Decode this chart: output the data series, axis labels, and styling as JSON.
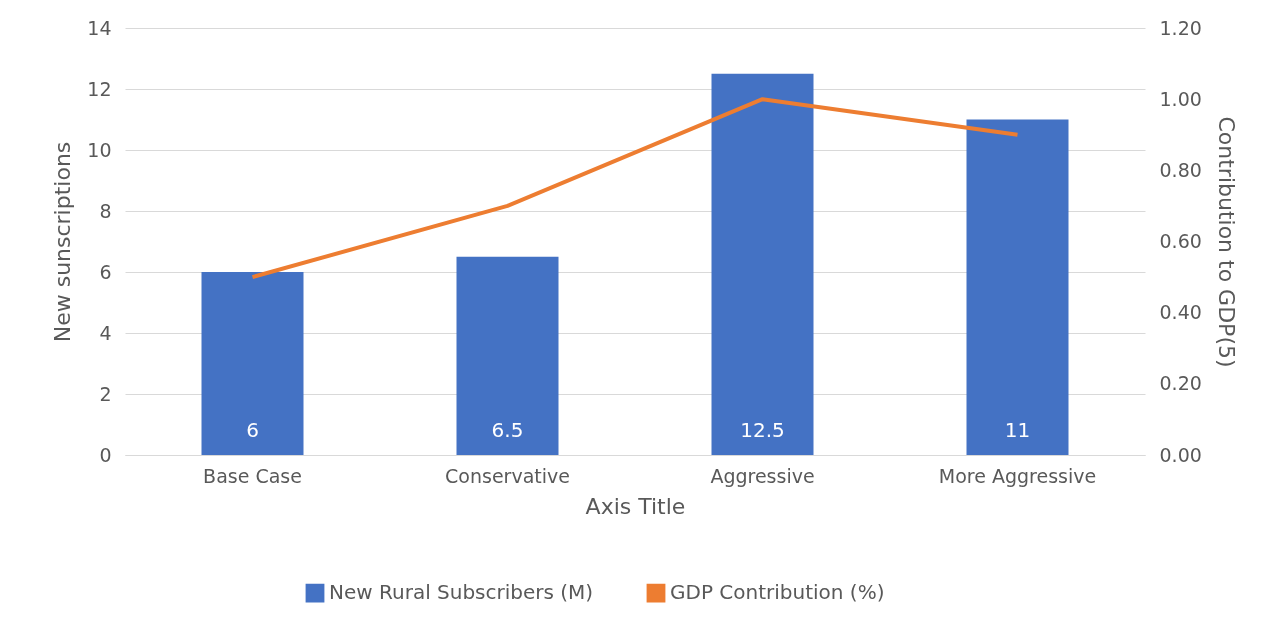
{
  "chart_data": {
    "type": "bar",
    "categories": [
      "Base Case",
      "Conservative",
      "Aggressive",
      "More Aggressive"
    ],
    "series": [
      {
        "name": "New Rural Subscribers (M)",
        "color": "#4472c4",
        "values": [
          6,
          6.5,
          12.5,
          11
        ],
        "value_labels": [
          "6",
          "6.5",
          "12.5",
          "11"
        ]
      },
      {
        "name": "GDP Contribution (%)",
        "type": "line",
        "axis": "y2",
        "color": "#ed7d31",
        "values": [
          0.5,
          0.7,
          1.0,
          0.9
        ]
      }
    ],
    "xlabel": "Axis Title",
    "ylabel": "New sunscriptions",
    "y2label": "Contribution to GDP(5)",
    "ylim": [
      0,
      14
    ],
    "yticks": [
      0,
      2,
      4,
      6,
      8,
      10,
      12,
      14
    ],
    "y2lim": [
      0,
      1.2
    ],
    "y2ticks": [
      {
        "value": 0,
        "label": "0.00"
      },
      {
        "value": 0.2,
        "label": "0.20"
      },
      {
        "value": 0.4,
        "label": "0.40"
      },
      {
        "value": 0.6,
        "label": "0.60"
      },
      {
        "value": 0.8,
        "label": "0.80"
      },
      {
        "value": 1.0,
        "label": "1.00"
      },
      {
        "value": 1.2,
        "label": "1.20"
      }
    ],
    "grid": "y",
    "legend": "bottom"
  }
}
